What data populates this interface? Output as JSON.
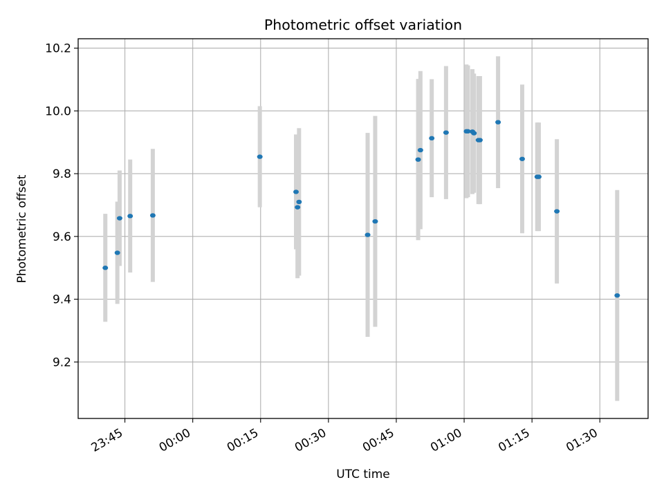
{
  "chart_data": {
    "type": "scatter",
    "title": "Photometric offset variation",
    "xlabel": "UTC time",
    "ylabel": "Photometric offset",
    "grid": true,
    "ylim": [
      9.02,
      10.23
    ],
    "xlim": [
      "23:34:40",
      "01:40:40"
    ],
    "yticks": [
      9.2,
      9.4,
      9.6,
      9.8,
      10.0,
      10.2
    ],
    "ytick_labels": [
      "9.2",
      "9.4",
      "9.6",
      "9.8",
      "10.0",
      "10.2"
    ],
    "xticks": [
      "23:45",
      "00:00",
      "00:15",
      "00:30",
      "00:45",
      "01:00",
      "01:15",
      "01:30"
    ],
    "colors": {
      "marker": "#1f77b4",
      "errorbar": "#d3d3d3",
      "grid": "#b0b0b0"
    },
    "series": [
      {
        "points": [
          {
            "x": "23:40:40",
            "y": 9.5,
            "yerr": 0.172
          },
          {
            "x": "23:43:20",
            "y": 9.548,
            "yerr": 0.163
          },
          {
            "x": "23:43:50",
            "y": 9.658,
            "yerr": 0.152
          },
          {
            "x": "23:46:10",
            "y": 9.665,
            "yerr": 0.18
          },
          {
            "x": "23:51:10",
            "y": 9.667,
            "yerr": 0.212
          },
          {
            "x": "00:14:50",
            "y": 9.854,
            "yerr": 0.161
          },
          {
            "x": "00:22:50",
            "y": 9.742,
            "yerr": 0.183
          },
          {
            "x": "00:23:10",
            "y": 9.693,
            "yerr": 0.226
          },
          {
            "x": "00:23:30",
            "y": 9.71,
            "yerr": 0.235
          },
          {
            "x": "00:38:40",
            "y": 9.605,
            "yerr": 0.325
          },
          {
            "x": "00:40:20",
            "y": 9.648,
            "yerr": 0.336
          },
          {
            "x": "00:49:50",
            "y": 9.845,
            "yerr": 0.257
          },
          {
            "x": "00:50:20",
            "y": 9.875,
            "yerr": 0.252
          },
          {
            "x": "00:52:50",
            "y": 9.913,
            "yerr": 0.188
          },
          {
            "x": "00:56:00",
            "y": 9.931,
            "yerr": 0.212
          },
          {
            "x": "01:00:30",
            "y": 9.935,
            "yerr": 0.213
          },
          {
            "x": "01:00:50",
            "y": 9.935,
            "yerr": 0.21
          },
          {
            "x": "01:01:50",
            "y": 9.934,
            "yerr": 0.199
          },
          {
            "x": "01:02:10",
            "y": 9.929,
            "yerr": 0.19
          },
          {
            "x": "01:03:10",
            "y": 9.907,
            "yerr": 0.204
          },
          {
            "x": "01:03:30",
            "y": 9.907,
            "yerr": 0.204
          },
          {
            "x": "01:07:30",
            "y": 9.964,
            "yerr": 0.21
          },
          {
            "x": "01:12:50",
            "y": 9.847,
            "yerr": 0.237
          },
          {
            "x": "01:16:10",
            "y": 9.79,
            "yerr": 0.173
          },
          {
            "x": "01:16:30",
            "y": 9.79,
            "yerr": 0.173
          },
          {
            "x": "01:20:30",
            "y": 9.68,
            "yerr": 0.23
          },
          {
            "x": "01:33:50",
            "y": 9.412,
            "yerr": 0.336
          }
        ]
      }
    ]
  }
}
